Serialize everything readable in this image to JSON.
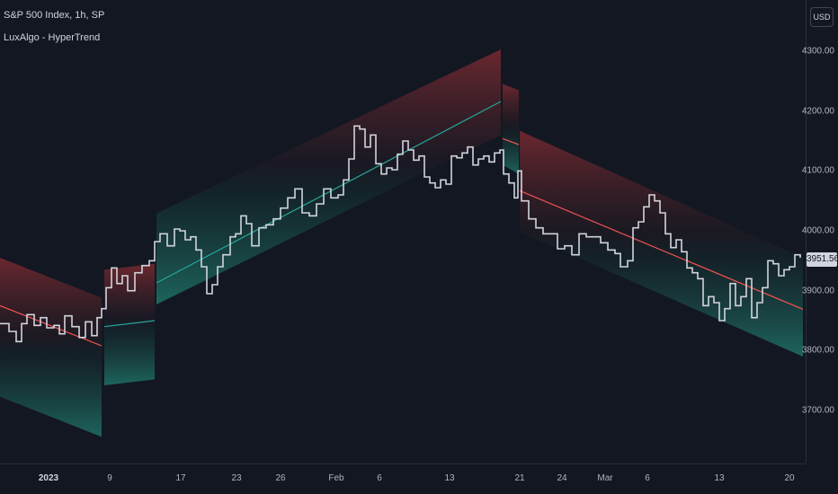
{
  "header": {
    "symbol_title": "S&P 500 Index, 1h, SP",
    "indicator_title": "LuxAlgo - HyperTrend"
  },
  "currency": "USD",
  "last_price": "3951.56",
  "colors": {
    "background": "#131722",
    "bullish": "#26a69a",
    "bearish": "#ef5350",
    "bar": "#d1d4dc"
  },
  "chart_data": {
    "type": "line",
    "title": "S&P 500 Index, 1h, SP",
    "indicator": "LuxAlgo - HyperTrend",
    "ylim": [
      3600,
      4350
    ],
    "y_ticks": [
      "4300.00",
      "4200.00",
      "4100.00",
      "4000.00",
      "3900.00",
      "3800.00",
      "3700.00"
    ],
    "x_ticks": [
      {
        "label": "2023",
        "bold": true,
        "t": 54
      },
      {
        "label": "9",
        "bold": false,
        "t": 122
      },
      {
        "label": "17",
        "bold": false,
        "t": 201
      },
      {
        "label": "23",
        "bold": false,
        "t": 263
      },
      {
        "label": "26",
        "bold": false,
        "t": 312
      },
      {
        "label": "Feb",
        "bold": false,
        "t": 374
      },
      {
        "label": "6",
        "bold": false,
        "t": 422
      },
      {
        "label": "13",
        "bold": false,
        "t": 500
      },
      {
        "label": "21",
        "bold": false,
        "t": 578
      },
      {
        "label": "24",
        "bold": false,
        "t": 625
      },
      {
        "label": "Mar",
        "bold": false,
        "t": 673
      },
      {
        "label": "6",
        "bold": false,
        "t": 720
      },
      {
        "label": "13",
        "bold": false,
        "t": 800
      },
      {
        "label": "20",
        "bold": false,
        "t": 878
      }
    ],
    "trend_segments": [
      {
        "direction": "bearish",
        "t": [
          0,
          113
        ],
        "mid": [
          3875,
          3808
        ],
        "upper": [
          3955,
          3888
        ],
        "lower": [
          3723,
          3656
        ]
      },
      {
        "direction": "bullish",
        "t": [
          116,
          172
        ],
        "mid": [
          3840,
          3850
        ],
        "upper": [
          3935,
          3945
        ],
        "lower": [
          3742,
          3752
        ]
      },
      {
        "direction": "bullish",
        "t": [
          174,
          557
        ],
        "mid": [
          3913,
          4216
        ],
        "upper": [
          4029,
          4303
        ],
        "lower": [
          3877,
          4160
        ]
      },
      {
        "direction": "bearish",
        "t": [
          559,
          577
        ],
        "mid": [
          4154,
          4144
        ],
        "upper": [
          4245,
          4235
        ],
        "lower": [
          4110,
          4095
        ]
      },
      {
        "direction": "bearish",
        "t": [
          578,
          893
        ],
        "mid": [
          4067,
          3869
        ],
        "upper": [
          4167,
          3955
        ],
        "lower": [
          3998,
          3790
        ]
      }
    ],
    "price_series": {
      "t": [
        0,
        10,
        18,
        24,
        30,
        38,
        45,
        52,
        60,
        66,
        72,
        80,
        88,
        95,
        102,
        108,
        113,
        118,
        124,
        130,
        136,
        142,
        150,
        158,
        166,
        172,
        178,
        186,
        194,
        200,
        206,
        212,
        218,
        224,
        230,
        236,
        242,
        248,
        256,
        262,
        268,
        274,
        280,
        288,
        296,
        304,
        312,
        320,
        328,
        336,
        344,
        352,
        360,
        368,
        376,
        382,
        388,
        394,
        400,
        406,
        412,
        418,
        424,
        430,
        436,
        442,
        448,
        454,
        460,
        466,
        472,
        478,
        484,
        490,
        496,
        502,
        508,
        514,
        520,
        526,
        532,
        538,
        544,
        550,
        556,
        560,
        566,
        572,
        576,
        580,
        588,
        596,
        604,
        612,
        620,
        628,
        636,
        644,
        652,
        660,
        668,
        676,
        684,
        690,
        698,
        704,
        710,
        716,
        722,
        728,
        734,
        740,
        746,
        752,
        758,
        764,
        770,
        776,
        782,
        788,
        794,
        800,
        806,
        812,
        818,
        824,
        830,
        836,
        842,
        848,
        854,
        860,
        866,
        872,
        878,
        884,
        890
      ],
      "close": [
        3845,
        3832,
        3815,
        3845,
        3860,
        3842,
        3855,
        3838,
        3842,
        3828,
        3858,
        3840,
        3822,
        3848,
        3825,
        3855,
        3870,
        3905,
        3938,
        3912,
        3925,
        3900,
        3930,
        3942,
        3950,
        3982,
        3995,
        3975,
        4003,
        4000,
        3985,
        3990,
        3968,
        3940,
        3895,
        3910,
        3940,
        3960,
        3990,
        3995,
        4025,
        4012,
        3975,
        4005,
        4010,
        4020,
        4038,
        4055,
        4070,
        4030,
        4025,
        4045,
        4070,
        4055,
        4060,
        4085,
        4120,
        4175,
        4170,
        4140,
        4160,
        4112,
        4095,
        4105,
        4102,
        4128,
        4150,
        4135,
        4118,
        4125,
        4090,
        4080,
        4072,
        4085,
        4078,
        4125,
        4122,
        4130,
        4140,
        4110,
        4120,
        4125,
        4115,
        4130,
        4135,
        4095,
        4080,
        4055,
        4100,
        4050,
        4020,
        4005,
        3995,
        3995,
        3970,
        3975,
        3960,
        3995,
        3990,
        3990,
        3980,
        3968,
        3962,
        3940,
        3950,
        4005,
        4015,
        4040,
        4060,
        4050,
        4030,
        3995,
        3972,
        3985,
        3965,
        3938,
        3930,
        3920,
        3875,
        3890,
        3880,
        3850,
        3870,
        3912,
        3875,
        3890,
        3920,
        3855,
        3880,
        3905,
        3950,
        3945,
        3925,
        3935,
        3940,
        3960,
        3955
      ]
    }
  }
}
